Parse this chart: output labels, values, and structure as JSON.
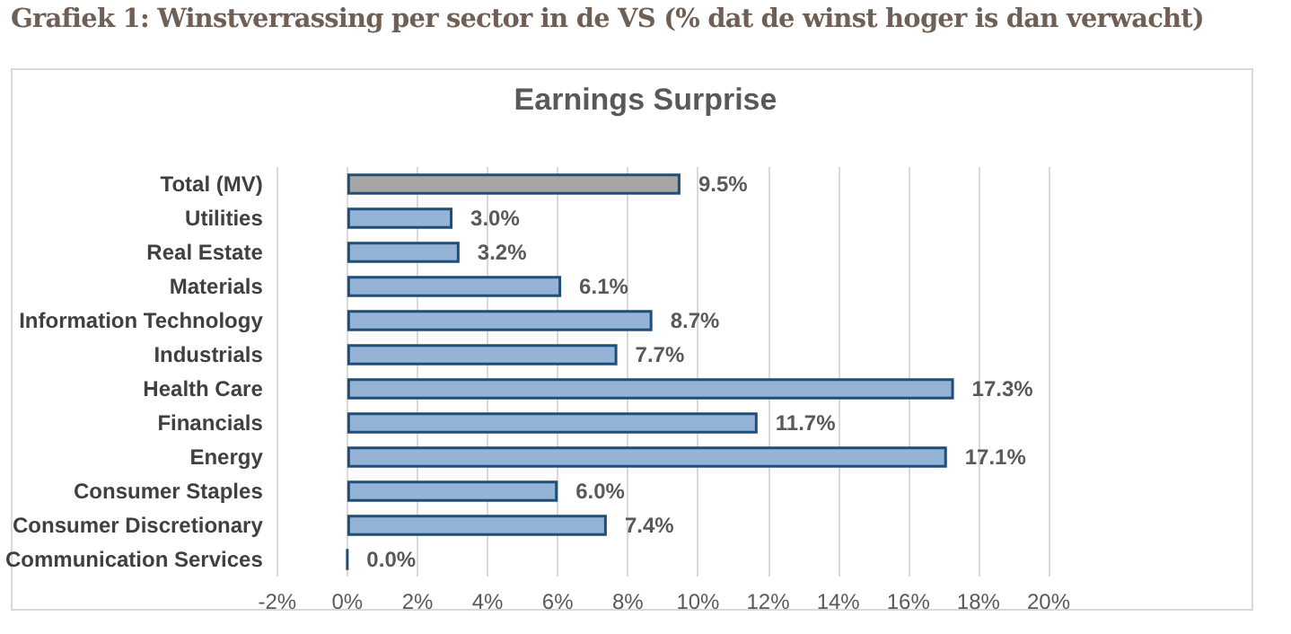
{
  "chart_data": {
    "type": "bar",
    "orientation": "horizontal",
    "title": "Grafiek 1: Winstverrassing per sector in de VS (% dat de winst hoger is dan verwacht)",
    "subtitle": "Earnings Surprise",
    "categories": [
      "Total (MV)",
      "Utilities",
      "Real Estate",
      "Materials",
      "Information Technology",
      "Industrials",
      "Health Care",
      "Financials",
      "Energy",
      "Consumer Staples",
      "Consumer Discretionary",
      "Communication Services"
    ],
    "values": [
      9.5,
      3.0,
      3.2,
      6.1,
      8.7,
      7.7,
      17.3,
      11.7,
      17.1,
      6.0,
      7.4,
      0.0
    ],
    "value_labels": [
      "9.5%",
      "3.0%",
      "3.2%",
      "6.1%",
      "8.7%",
      "7.7%",
      "17.3%",
      "11.7%",
      "17.1%",
      "6.0%",
      "7.4%",
      "0.0%"
    ],
    "colors": [
      "#a6a6a6",
      "#95b3d7",
      "#95b3d7",
      "#95b3d7",
      "#95b3d7",
      "#95b3d7",
      "#95b3d7",
      "#95b3d7",
      "#95b3d7",
      "#95b3d7",
      "#95b3d7",
      "#1f4e79"
    ],
    "xlim": [
      -2,
      20
    ],
    "xticks": [
      {
        "value": -2,
        "label": "-2%"
      },
      {
        "value": 0,
        "label": "0%"
      },
      {
        "value": 2,
        "label": "2%"
      },
      {
        "value": 4,
        "label": "4%"
      },
      {
        "value": 6,
        "label": "6%"
      },
      {
        "value": 8,
        "label": "8%"
      },
      {
        "value": 10,
        "label": "10%"
      },
      {
        "value": 12,
        "label": "12%"
      },
      {
        "value": 14,
        "label": "14%"
      },
      {
        "value": 16,
        "label": "16%"
      },
      {
        "value": 18,
        "label": "18%"
      },
      {
        "value": 20,
        "label": "20%"
      }
    ],
    "grid": "x"
  }
}
